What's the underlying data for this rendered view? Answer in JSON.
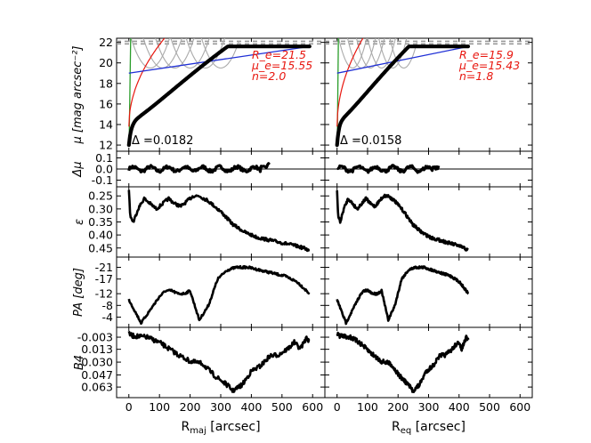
{
  "chart_data": {
    "type": "line",
    "title": "",
    "columns": [
      {
        "name": "left",
        "xlabel_main": "R",
        "xlabel_sub": "maj",
        "xlabel_unit": "[arcsec]",
        "xlim": [
          -40,
          640
        ],
        "xticks": [
          0,
          100,
          200,
          300,
          400,
          500,
          600
        ],
        "fit": {
          "re": "R_e=21.5",
          "mu": "μ_e=15.55",
          "n": "n=2.0",
          "delta": "Δ =0.0182"
        },
        "profile_end": 590,
        "ellip_end": 590,
        "scale": 1.0
      },
      {
        "name": "right",
        "xlabel_main": "R",
        "xlabel_sub": "eq",
        "xlabel_unit": "[arcsec]",
        "xlim": [
          -40,
          640
        ],
        "xticks": [
          0,
          100,
          200,
          300,
          400,
          500,
          600
        ],
        "fit": {
          "re": "R_e=15.9",
          "mu": "μ_e=15.43",
          "n": "n=1.8",
          "delta": "Δ =0.0158"
        },
        "profile_end": 430,
        "ellip_end": 430,
        "scale": 0.73
      }
    ],
    "panels": [
      {
        "key": "mu",
        "ylabel": "μ [mag arcsec⁻²]",
        "ylim": [
          22.4,
          11.4
        ],
        "yticks": [
          12,
          14,
          16,
          18,
          20,
          22
        ],
        "ytick_labels": [
          "12",
          "14",
          "16",
          "18",
          "20",
          "22"
        ]
      },
      {
        "key": "dmu",
        "ylabel": "Δμ",
        "ylim": [
          0.16,
          -0.16
        ],
        "yticks": [
          -0.1,
          0.0,
          0.1
        ],
        "ytick_labels": [
          "-0.1",
          "0.0",
          "0.1"
        ]
      },
      {
        "key": "eps",
        "ylabel": "ε",
        "ylim": [
          0.215,
          0.485
        ],
        "yticks": [
          0.25,
          0.3,
          0.35,
          0.4,
          0.45
        ],
        "ytick_labels": [
          "0.25",
          "0.30",
          "0.35",
          "0.40",
          "0.45"
        ]
      },
      {
        "key": "pa",
        "ylabel": "PA [deg]",
        "ylim": [
          -24.5,
          -0.5
        ],
        "yticks": [
          -4,
          -8,
          -12,
          -17,
          -21
        ],
        "ytick_labels": [
          "-4",
          "-8",
          "-12",
          "-17",
          "-21"
        ]
      },
      {
        "key": "b4",
        "ylabel": "B4",
        "ylim": [
          -0.016,
          0.077
        ],
        "yticks": [
          0.063,
          0.047,
          0.03,
          0.013,
          -0.003
        ],
        "ytick_labels": [
          "0.063",
          "0.047",
          "0.030",
          "0.013",
          "-0.003"
        ]
      }
    ],
    "profiles": {
      "eps": {
        "x": [
          0,
          5,
          15,
          30,
          50,
          70,
          90,
          110,
          130,
          150,
          170,
          190,
          210,
          230,
          260,
          300,
          340,
          380,
          420,
          460,
          500,
          540,
          570,
          590
        ],
        "y": [
          0.23,
          0.33,
          0.35,
          0.3,
          0.26,
          0.28,
          0.3,
          0.28,
          0.26,
          0.28,
          0.29,
          0.27,
          0.25,
          0.25,
          0.27,
          0.31,
          0.36,
          0.39,
          0.41,
          0.42,
          0.43,
          0.44,
          0.45,
          0.46
        ]
      },
      "pa": {
        "x": [
          0,
          10,
          20,
          30,
          40,
          60,
          80,
          100,
          120,
          140,
          160,
          180,
          200,
          230,
          260,
          290,
          320,
          350,
          390,
          430,
          470,
          510,
          550,
          570,
          590
        ],
        "y": [
          -10,
          -8,
          -6,
          -4,
          -2,
          -5,
          -8,
          -11,
          -13,
          -13,
          -12,
          -12,
          -13,
          -3,
          -8,
          -17,
          -20,
          -21,
          -21,
          -20,
          -19,
          -18,
          -16,
          -14,
          -12
        ]
      },
      "b4": {
        "x": [
          0,
          10,
          30,
          60,
          100,
          130,
          160,
          200,
          240,
          280,
          320,
          340,
          370,
          400,
          430,
          460,
          490,
          520,
          540,
          560,
          580,
          590
        ],
        "y": [
          -0.008,
          -0.005,
          -0.004,
          -0.003,
          0.004,
          0.012,
          0.02,
          0.029,
          0.032,
          0.048,
          0.06,
          0.068,
          0.06,
          0.042,
          0.035,
          0.022,
          0.02,
          0.012,
          0.004,
          0.012,
          -0.002,
          0.002
        ]
      }
    }
  }
}
